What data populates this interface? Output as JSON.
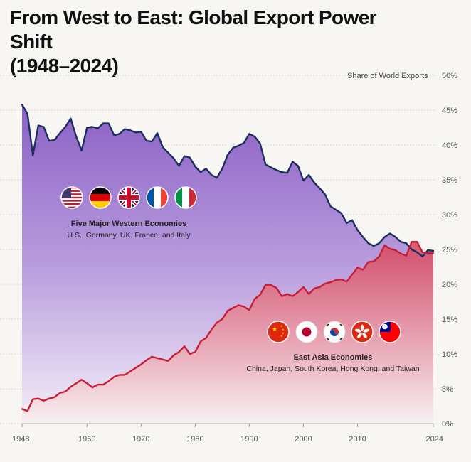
{
  "title_line1": "From West to East: Global Export Power Shift",
  "title_line2": "(1948–2024)",
  "chart_data": {
    "type": "area",
    "title": "From West to East: Global Export Power Shift (1948–2024)",
    "ylabel": "Share of World Exports",
    "xlabel": "",
    "ylim": [
      0,
      50
    ],
    "xlim": [
      1948,
      2024
    ],
    "yticks": [
      0,
      5,
      10,
      15,
      20,
      25,
      30,
      35,
      40,
      45,
      50
    ],
    "ytick_labels": [
      "0%",
      "5%",
      "10%",
      "15%",
      "20%",
      "25%",
      "30%",
      "35%",
      "40%",
      "45%",
      "50%"
    ],
    "xticks": [
      1948,
      1960,
      1970,
      1980,
      1990,
      2000,
      2010,
      2024
    ],
    "xtick_labels": [
      "1948",
      "1960",
      "1970",
      "1980",
      "1990",
      "2000",
      "2010",
      "2024"
    ],
    "grid": true,
    "series": [
      {
        "name": "Five Major Western Economies",
        "description": "U.S., Germany, UK, France, and Italy",
        "flags": [
          "United States",
          "Germany",
          "United Kingdom",
          "France",
          "Italy"
        ],
        "color": "#1b2f5e",
        "fill_top": "#8a5cc6",
        "points": [
          [
            1948,
            45.8
          ],
          [
            1949,
            44.5
          ],
          [
            1950,
            38.5
          ],
          [
            1951,
            42.8
          ],
          [
            1952,
            42.6
          ],
          [
            1953,
            40.6
          ],
          [
            1954,
            40.7
          ],
          [
            1955,
            41.7
          ],
          [
            1956,
            42.6
          ],
          [
            1957,
            43.8
          ],
          [
            1958,
            41.2
          ],
          [
            1959,
            39.2
          ],
          [
            1960,
            42.5
          ],
          [
            1961,
            42.6
          ],
          [
            1962,
            42.4
          ],
          [
            1963,
            43.1
          ],
          [
            1964,
            43.1
          ],
          [
            1965,
            41.4
          ],
          [
            1966,
            41.6
          ],
          [
            1967,
            42.3
          ],
          [
            1968,
            42.1
          ],
          [
            1969,
            41.8
          ],
          [
            1970,
            41.9
          ],
          [
            1971,
            40.6
          ],
          [
            1972,
            40.5
          ],
          [
            1973,
            41.7
          ],
          [
            1974,
            39.7
          ],
          [
            1975,
            38.9
          ],
          [
            1976,
            38.1
          ],
          [
            1977,
            37.0
          ],
          [
            1978,
            38.4
          ],
          [
            1979,
            38.2
          ],
          [
            1980,
            36.9
          ],
          [
            1981,
            36.1
          ],
          [
            1982,
            36.6
          ],
          [
            1983,
            35.7
          ],
          [
            1984,
            35.3
          ],
          [
            1985,
            36.6
          ],
          [
            1986,
            38.6
          ],
          [
            1987,
            39.6
          ],
          [
            1988,
            39.9
          ],
          [
            1989,
            40.3
          ],
          [
            1990,
            41.6
          ],
          [
            1991,
            41.2
          ],
          [
            1992,
            40.2
          ],
          [
            1993,
            37.2
          ],
          [
            1994,
            36.8
          ],
          [
            1995,
            36.4
          ],
          [
            1996,
            36.1
          ],
          [
            1997,
            36.0
          ],
          [
            1998,
            37.6
          ],
          [
            1999,
            37.0
          ],
          [
            2000,
            34.9
          ],
          [
            2001,
            35.7
          ],
          [
            2002,
            34.6
          ],
          [
            2003,
            33.8
          ],
          [
            2004,
            32.9
          ],
          [
            2005,
            31.2
          ],
          [
            2006,
            30.7
          ],
          [
            2007,
            30.2
          ],
          [
            2008,
            28.8
          ],
          [
            2009,
            29.2
          ],
          [
            2010,
            27.8
          ],
          [
            2011,
            26.8
          ],
          [
            2012,
            25.9
          ],
          [
            2013,
            25.5
          ],
          [
            2014,
            25.9
          ],
          [
            2015,
            26.8
          ],
          [
            2016,
            27.3
          ],
          [
            2017,
            26.8
          ],
          [
            2018,
            26.1
          ],
          [
            2019,
            25.9
          ],
          [
            2020,
            25.0
          ],
          [
            2021,
            24.6
          ],
          [
            2022,
            24.0
          ],
          [
            2023,
            24.9
          ],
          [
            2024,
            24.8
          ]
        ]
      },
      {
        "name": "East Asia Economies",
        "description": "China, Japan, South Korea, Hong Kong, and Taiwan",
        "flags": [
          "China",
          "Japan",
          "South Korea",
          "Hong Kong",
          "Taiwan"
        ],
        "color": "#c81e34",
        "fill_top": "#d8485f",
        "points": [
          [
            1948,
            2.1
          ],
          [
            1949,
            1.8
          ],
          [
            1950,
            3.5
          ],
          [
            1951,
            3.6
          ],
          [
            1952,
            3.3
          ],
          [
            1953,
            3.6
          ],
          [
            1954,
            3.8
          ],
          [
            1955,
            4.4
          ],
          [
            1956,
            4.6
          ],
          [
            1957,
            5.3
          ],
          [
            1958,
            5.8
          ],
          [
            1959,
            6.3
          ],
          [
            1960,
            5.8
          ],
          [
            1961,
            5.2
          ],
          [
            1962,
            5.6
          ],
          [
            1963,
            5.6
          ],
          [
            1964,
            6.1
          ],
          [
            1965,
            6.7
          ],
          [
            1966,
            7.0
          ],
          [
            1967,
            7.0
          ],
          [
            1968,
            7.5
          ],
          [
            1969,
            8.0
          ],
          [
            1970,
            8.5
          ],
          [
            1971,
            9.1
          ],
          [
            1972,
            9.6
          ],
          [
            1973,
            9.4
          ],
          [
            1974,
            9.2
          ],
          [
            1975,
            9.0
          ],
          [
            1976,
            9.8
          ],
          [
            1977,
            10.3
          ],
          [
            1978,
            11.1
          ],
          [
            1979,
            10.0
          ],
          [
            1980,
            10.3
          ],
          [
            1981,
            11.8
          ],
          [
            1982,
            12.3
          ],
          [
            1983,
            13.5
          ],
          [
            1984,
            14.5
          ],
          [
            1985,
            15.0
          ],
          [
            1986,
            16.2
          ],
          [
            1987,
            16.6
          ],
          [
            1988,
            17.0
          ],
          [
            1989,
            16.8
          ],
          [
            1990,
            16.3
          ],
          [
            1991,
            17.9
          ],
          [
            1992,
            18.5
          ],
          [
            1993,
            19.9
          ],
          [
            1994,
            19.9
          ],
          [
            1995,
            19.5
          ],
          [
            1996,
            18.3
          ],
          [
            1997,
            18.6
          ],
          [
            1998,
            18.3
          ],
          [
            1999,
            18.9
          ],
          [
            2000,
            19.6
          ],
          [
            2001,
            18.6
          ],
          [
            2002,
            19.4
          ],
          [
            2003,
            19.6
          ],
          [
            2004,
            20.1
          ],
          [
            2005,
            20.3
          ],
          [
            2006,
            20.6
          ],
          [
            2007,
            20.7
          ],
          [
            2008,
            20.4
          ],
          [
            2009,
            21.4
          ],
          [
            2010,
            22.4
          ],
          [
            2011,
            22.1
          ],
          [
            2012,
            23.2
          ],
          [
            2013,
            23.3
          ],
          [
            2014,
            24.0
          ],
          [
            2015,
            25.6
          ],
          [
            2016,
            25.1
          ],
          [
            2017,
            24.9
          ],
          [
            2018,
            24.4
          ],
          [
            2019,
            24.1
          ],
          [
            2020,
            26.1
          ],
          [
            2021,
            26.1
          ],
          [
            2022,
            24.6
          ],
          [
            2023,
            24.5
          ],
          [
            2024,
            24.5
          ]
        ]
      }
    ]
  }
}
